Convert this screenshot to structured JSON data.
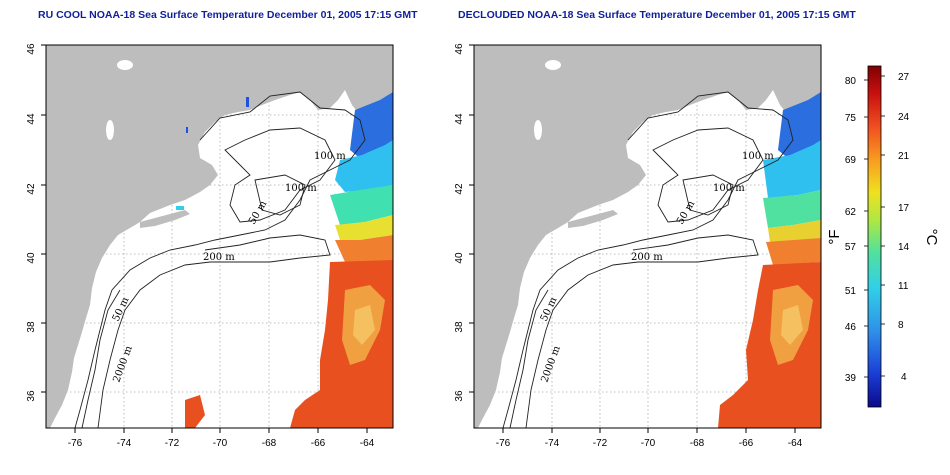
{
  "panels": [
    {
      "title": "RU COOL NOAA-18 Sea Surface Temperature December 01, 2005 17:15 GMT",
      "lat_ticks": [
        "46",
        "44",
        "42",
        "40",
        "38",
        "36"
      ],
      "lon_ticks": [
        "-76",
        "-74",
        "-72",
        "-70",
        "-68",
        "-66",
        "-64"
      ],
      "contour_labels": [
        "100 m",
        "100 m",
        "50 m",
        "200 m",
        "50 m",
        "2000 m"
      ]
    },
    {
      "title": "DECLOUDED NOAA-18 Sea Surface Temperature December 01, 2005 17:15 GMT",
      "lat_ticks": [
        "46",
        "44",
        "42",
        "40",
        "38",
        "36"
      ],
      "lon_ticks": [
        "-76",
        "-74",
        "-72",
        "-70",
        "-68",
        "-66",
        "-64"
      ],
      "contour_labels": [
        "100 m",
        "100 m",
        "50 m",
        "200 m",
        "50 m",
        "2000 m"
      ]
    }
  ],
  "colorbar": {
    "fahrenheit_label": "°F",
    "celsius_label": "°C",
    "fahrenheit_ticks": [
      "80",
      "75",
      "69",
      "62",
      "57",
      "51",
      "46",
      "39"
    ],
    "celsius_ticks": [
      "27",
      "24",
      "21",
      "17",
      "14",
      "11",
      "8",
      "4"
    ],
    "colors": [
      "#0a0a8a",
      "#1a3fd8",
      "#2f8fe8",
      "#30d0e8",
      "#50e0a0",
      "#b0e840",
      "#f0e020",
      "#f8a020",
      "#f05020",
      "#c81010",
      "#800000"
    ]
  }
}
